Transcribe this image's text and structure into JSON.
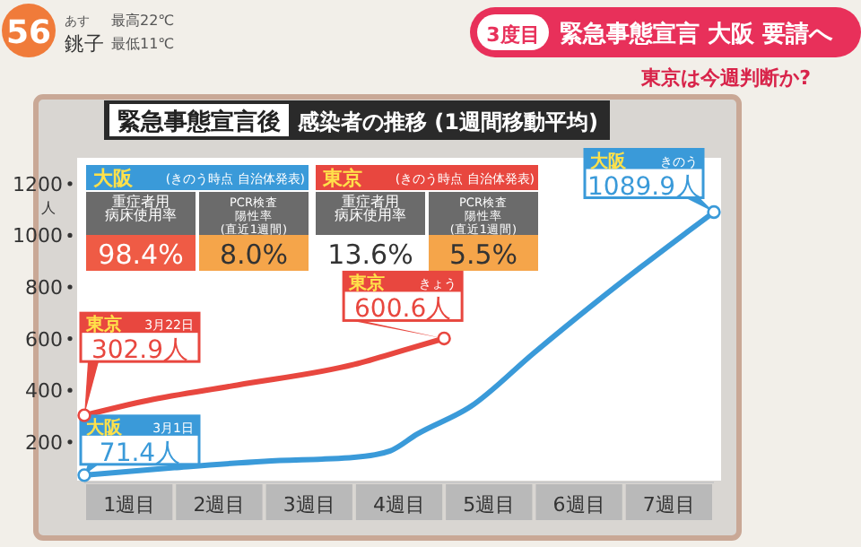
{
  "chart_data": {
    "type": "line",
    "title": "緊急事態宣言後",
    "subtitle": "感染者の推移 (1週間移動平均)",
    "ylabel": "人",
    "xlim": [
      0,
      7
    ],
    "xticks": [
      {
        "value": 0.5,
        "label": "1週目"
      },
      {
        "value": 1.5,
        "label": "2週目"
      },
      {
        "value": 2.5,
        "label": "3週目"
      },
      {
        "value": 3.5,
        "label": "4週目"
      },
      {
        "value": 4.5,
        "label": "5週目"
      },
      {
        "value": 5.5,
        "label": "6週目"
      },
      {
        "value": 6.5,
        "label": "7週目"
      }
    ],
    "ylim": [
      50,
      1300
    ],
    "yticks": [
      200,
      400,
      600,
      800,
      1000,
      1200
    ],
    "grid": false,
    "legend": false,
    "line_style": "solid",
    "series": [
      {
        "name": "大阪",
        "color": "#3a9ad9",
        "x": [
          0,
          1,
          2,
          3,
          3.4,
          3.7,
          4.3,
          5,
          5.65,
          6.2,
          7
        ],
        "values": [
          71.4,
          100,
          125,
          140,
          165,
          230,
          338,
          545,
          730,
          880,
          1089.9
        ]
      },
      {
        "name": "東京",
        "color": "#e8473f",
        "x": [
          0,
          0.7,
          1.7,
          3,
          3.6,
          4
        ],
        "values": [
          302.9,
          360,
          420,
          500,
          560,
          600.6
        ]
      }
    ],
    "annotations": [
      "56",
      "あす",
      "銚子",
      "最高22℃",
      "最低11℃",
      "3度目",
      "緊急事態宣言 大阪 要請へ",
      "東京は今週判断か?",
      "大阪",
      "(きのう時点 自治体発表)",
      "重症者用",
      "病床使用率",
      "98.4%",
      "PCR検査",
      "陽性率",
      "(直近1週間)",
      "8.0%",
      "東京",
      "(きのう時点 自治体発表)",
      "重症者用",
      "病床使用率",
      "13.6%",
      "PCR検査",
      "陽性率",
      "(直近1週間)",
      "5.5%",
      "3月1日",
      "きのう",
      "3月22日",
      "きょう",
      {
        "text": "71.4人",
        "x": 0,
        "y": 71.4
      },
      {
        "text": "1089.9人",
        "x": 7,
        "y": 1089.9
      },
      {
        "text": "302.9人",
        "x": 0,
        "y": 302.9
      },
      {
        "text": "600.6人",
        "x": 4,
        "y": 600.6
      }
    ]
  }
}
